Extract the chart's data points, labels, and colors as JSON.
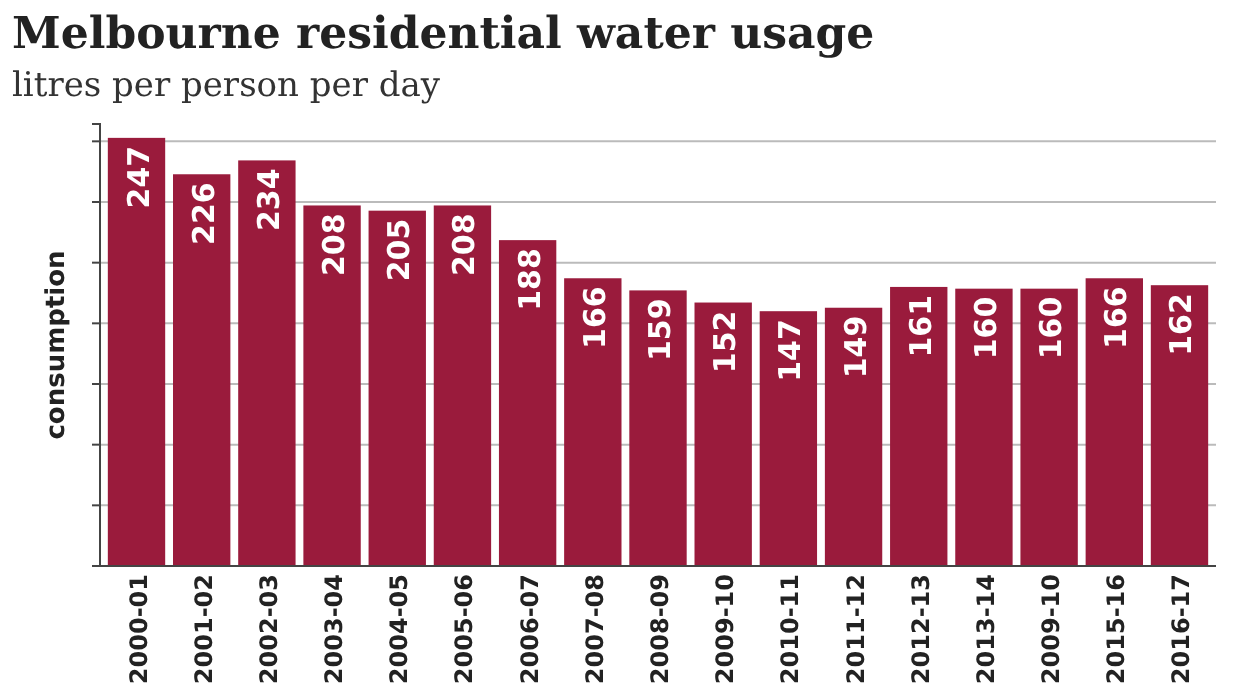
{
  "chart_data": {
    "type": "bar",
    "title": "Melbourne residential water usage",
    "subtitle": "litres per person per day",
    "ylabel": "consumption",
    "categories": [
      "2000-01",
      "2001-02",
      "2002-03",
      "2003-04",
      "2004-05",
      "2005-06",
      "2006-07",
      "2007-08",
      "2008-09",
      "2009-10",
      "2010-11",
      "2011-12",
      "2012-13",
      "2013-14",
      "2009-10",
      "2015-16",
      "2016-17"
    ],
    "values": [
      247,
      226,
      234,
      208,
      205,
      208,
      188,
      166,
      159,
      152,
      147,
      149,
      161,
      160,
      160,
      166,
      162
    ],
    "color": "#9a1b3c",
    "data_labels": true,
    "ylim": [
      0,
      255
    ],
    "yticks": [
      {
        "value": 35,
        "label": null
      },
      {
        "value": 70,
        "label": null
      },
      {
        "value": 105,
        "label": null
      },
      {
        "value": 140,
        "label": null
      },
      {
        "value": 175,
        "label": null
      },
      {
        "value": 210,
        "label": null
      },
      {
        "value": 245,
        "label": null
      }
    ],
    "grid": "y",
    "tick_labels": "x"
  }
}
